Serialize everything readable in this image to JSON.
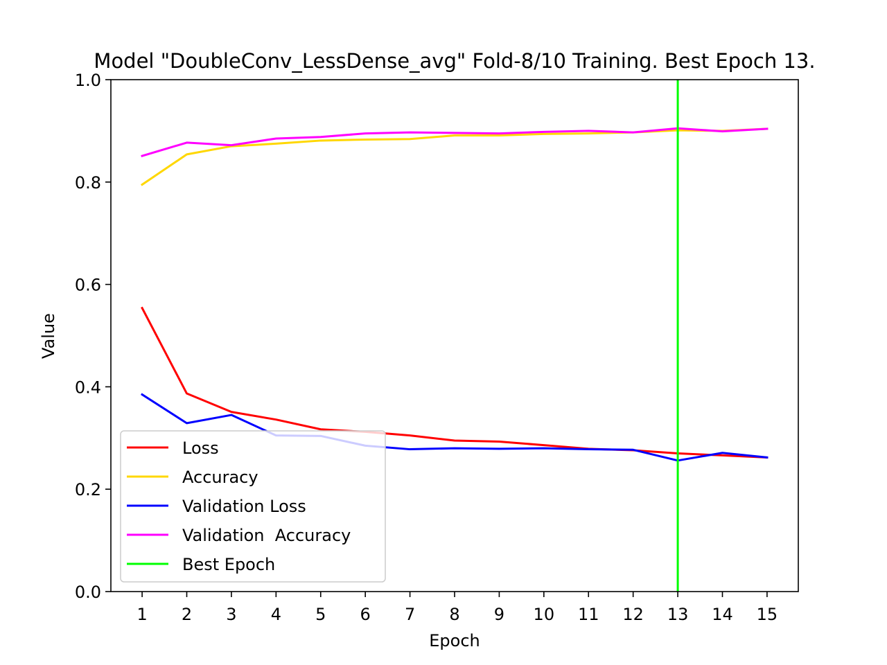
{
  "chart_data": {
    "type": "line",
    "title": "Model \"DoubleConv_LessDense_avg\" Fold-8/10 Training. Best Epoch 13.",
    "xlabel": "Epoch",
    "ylabel": "Value",
    "x": [
      1,
      2,
      3,
      4,
      5,
      6,
      7,
      8,
      9,
      10,
      11,
      12,
      13,
      14,
      15
    ],
    "xticks": [
      "1",
      "2",
      "3",
      "4",
      "5",
      "6",
      "7",
      "8",
      "9",
      "10",
      "11",
      "12",
      "13",
      "14",
      "15"
    ],
    "xlim": [
      0.3,
      15.7
    ],
    "ylim": [
      0.0,
      1.0
    ],
    "yticks": [
      "0.0",
      "0.2",
      "0.4",
      "0.6",
      "0.8",
      "1.0"
    ],
    "grid": false,
    "legend_position": "lower-left",
    "series": [
      {
        "name": "Loss",
        "color": "#ff0000",
        "values": [
          0.554,
          0.387,
          0.351,
          0.336,
          0.317,
          0.312,
          0.305,
          0.295,
          0.293,
          0.286,
          0.279,
          0.276,
          0.27,
          0.266,
          0.262
        ]
      },
      {
        "name": "Accuracy",
        "color": "#ffd700",
        "values": [
          0.795,
          0.854,
          0.87,
          0.875,
          0.881,
          0.883,
          0.884,
          0.891,
          0.891,
          0.894,
          0.895,
          0.897,
          0.901,
          0.9,
          0.904
        ]
      },
      {
        "name": "Validation Loss",
        "color": "#0000ff",
        "values": [
          0.385,
          0.329,
          0.345,
          0.305,
          0.304,
          0.285,
          0.278,
          0.28,
          0.279,
          0.28,
          0.278,
          0.277,
          0.256,
          0.271,
          0.262
        ]
      },
      {
        "name": "Validation  Accuracy",
        "color": "#ff00ff",
        "values": [
          0.851,
          0.877,
          0.872,
          0.885,
          0.888,
          0.895,
          0.897,
          0.896,
          0.895,
          0.898,
          0.9,
          0.897,
          0.905,
          0.899,
          0.904
        ]
      }
    ],
    "best_epoch": {
      "name": "Best Epoch",
      "color": "#00ff00",
      "x": 13
    }
  }
}
